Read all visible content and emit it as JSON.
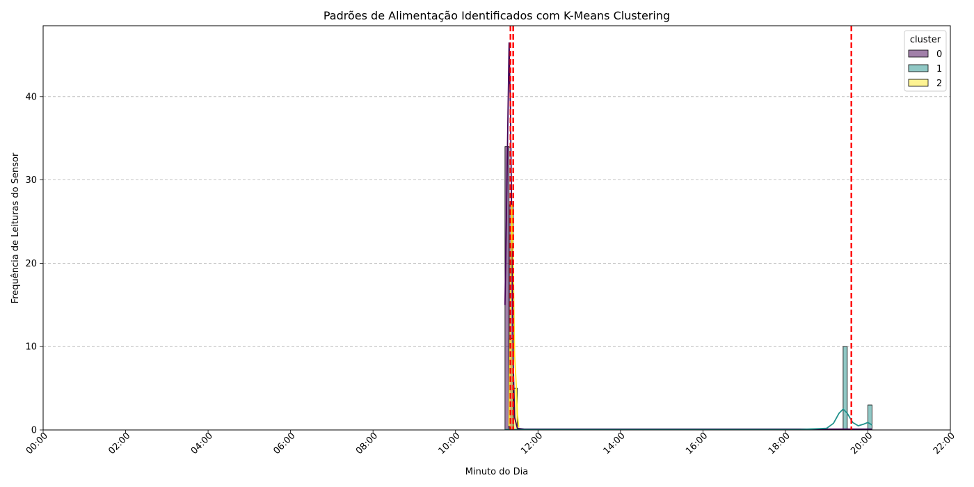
{
  "chart_data": {
    "type": "histogram",
    "title": "Padrões de Alimentação Identificados com K-Means Clustering",
    "xlabel": "Minuto do Dia",
    "ylabel": "Frequência de Leituras do Sensor",
    "xlim": [
      0,
      1320
    ],
    "ylim": [
      0,
      48.5
    ],
    "x_ticks": [
      0,
      120,
      240,
      360,
      480,
      600,
      720,
      840,
      960,
      1080,
      1200,
      1320
    ],
    "x_tick_labels": [
      "00:00",
      "02:00",
      "04:00",
      "06:00",
      "08:00",
      "10:00",
      "12:00",
      "14:00",
      "16:00",
      "18:00",
      "20:00",
      "22:00"
    ],
    "y_ticks": [
      0,
      10,
      20,
      30,
      40
    ],
    "grid": "y-dashed",
    "legend": {
      "title": "cluster",
      "position": "top-right",
      "entries": [
        "0",
        "1",
        "2"
      ]
    },
    "colors": {
      "0": "#440154",
      "1": "#21918c",
      "2": "#fde725",
      "centroid": "#ff0000"
    },
    "bars": [
      {
        "cluster": "0",
        "x0": 672,
        "x1": 678,
        "count": 34
      },
      {
        "cluster": "0",
        "x0": 678,
        "x1": 684,
        "count": 27
      },
      {
        "cluster": "2",
        "x0": 678,
        "x1": 684,
        "count": 11
      },
      {
        "cluster": "2",
        "x0": 684,
        "x1": 690,
        "count": 5
      },
      {
        "cluster": "1",
        "x0": 1164,
        "x1": 1170,
        "count": 10
      },
      {
        "cluster": "1",
        "x0": 1200,
        "x1": 1206,
        "count": 3
      }
    ],
    "kde": [
      {
        "cluster": "0",
        "points": [
          [
            672,
            15
          ],
          [
            674,
            25
          ],
          [
            676,
            36
          ],
          [
            678,
            46.5
          ],
          [
            680,
            38
          ],
          [
            682,
            24
          ],
          [
            684,
            8
          ],
          [
            686,
            1.5
          ],
          [
            690,
            0.2
          ],
          [
            700,
            0.1
          ],
          [
            900,
            0.1
          ],
          [
            1100,
            0.1
          ],
          [
            1206,
            0.1
          ]
        ]
      },
      {
        "cluster": "2",
        "points": [
          [
            678,
            0.5
          ],
          [
            680,
            15
          ],
          [
            682,
            27
          ],
          [
            684,
            20
          ],
          [
            686,
            9
          ],
          [
            688,
            6
          ],
          [
            690,
            2
          ],
          [
            692,
            0.3
          ]
        ]
      },
      {
        "cluster": "1",
        "points": [
          [
            672,
            0.05
          ],
          [
            1100,
            0.05
          ],
          [
            1140,
            0.2
          ],
          [
            1150,
            0.8
          ],
          [
            1158,
            2
          ],
          [
            1164,
            2.5
          ],
          [
            1170,
            2
          ],
          [
            1178,
            0.9
          ],
          [
            1186,
            0.5
          ],
          [
            1194,
            0.7
          ],
          [
            1200,
            0.9
          ],
          [
            1206,
            0.6
          ]
        ]
      }
    ],
    "centroid_lines": [
      680,
      684,
      1176
    ]
  }
}
